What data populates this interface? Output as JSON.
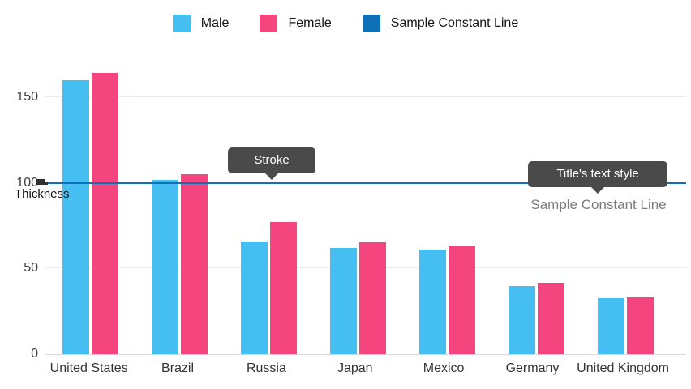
{
  "legend": {
    "items": [
      {
        "label": "Male",
        "color": "#45BEF2"
      },
      {
        "label": "Female",
        "color": "#F5457E"
      },
      {
        "label": "Sample Constant Line",
        "color": "#0E71B7"
      }
    ]
  },
  "annotations": {
    "stroke_tooltip": "Stroke",
    "title_style_tooltip": "Title's text style",
    "thickness_label": "Thickness",
    "constant_line_title": "Sample Constant Line"
  },
  "chart_data": {
    "type": "bar",
    "categories": [
      "United States",
      "Brazil",
      "Russia",
      "Japan",
      "Mexico",
      "Germany",
      "United Kingdom"
    ],
    "series": [
      {
        "name": "Male",
        "color": "#45BEF2",
        "values": [
          160,
          102,
          66,
          62,
          61,
          40,
          32.5
        ]
      },
      {
        "name": "Female",
        "color": "#F5457E",
        "values": [
          164.5,
          105,
          77,
          65.5,
          63.5,
          41.7,
          33
        ]
      }
    ],
    "constant_line": {
      "value": 100,
      "label": "Sample Constant Line",
      "color": "#0E71B7",
      "thickness": 2
    },
    "yticks": [
      0,
      50,
      100,
      150
    ],
    "ylim": [
      0,
      171.5
    ],
    "xlabel": "",
    "ylabel": "",
    "grid": "horizontal",
    "legend_position": "top"
  }
}
